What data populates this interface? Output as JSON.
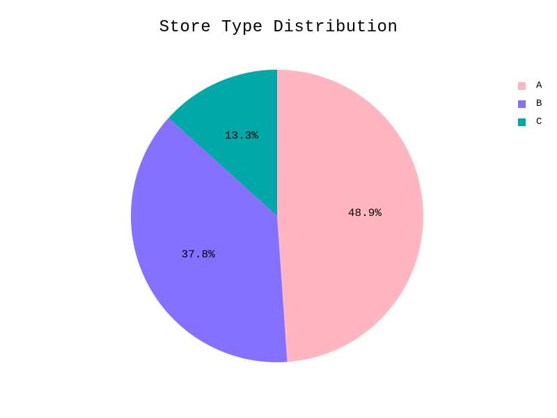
{
  "chart_data": {
    "type": "pie",
    "title": "Store Type Distribution",
    "categories": [
      "A",
      "B",
      "C"
    ],
    "values": [
      48.9,
      37.8,
      13.3
    ],
    "labels": [
      "48.9%",
      "37.8%",
      "13.3%"
    ],
    "colors": [
      "#ffb6c1",
      "#8570ff",
      "#00a8a8"
    ],
    "start_angle_deg": 90,
    "direction": "clockwise",
    "legend_position": "top-right"
  }
}
